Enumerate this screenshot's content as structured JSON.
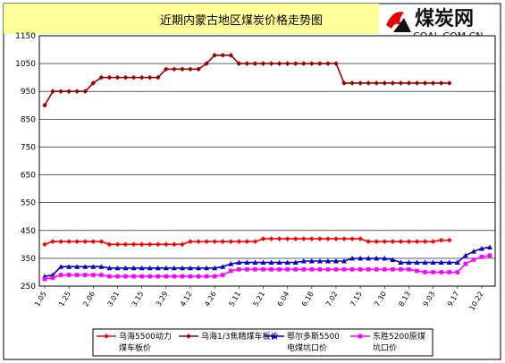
{
  "logo": {
    "cn": "煤炭网",
    "en": "COAL.COM.CN"
  },
  "chart_data": {
    "type": "line",
    "title": "近期内蒙古地区煤炭价格走势图",
    "xlabel": "",
    "ylabel": "",
    "ylim": [
      250,
      1150
    ],
    "yticks": [
      250,
      350,
      450,
      550,
      650,
      750,
      850,
      950,
      1050,
      1150
    ],
    "grid": true,
    "legend_position": "bottom",
    "x_tick_labels": [
      "1.05",
      "1.25",
      "2.06",
      "3.01",
      "3.15",
      "3.29",
      "4.12",
      "4.26",
      "5.11",
      "5.21",
      "6.04",
      "6.18",
      "7.02",
      "7.15",
      "7.30",
      "8.13",
      "9.03",
      "9.17",
      "10.22"
    ],
    "x_tick_indices": [
      0,
      3,
      6,
      9,
      12,
      15,
      18,
      21,
      24,
      27,
      30,
      33,
      36,
      39,
      42,
      45,
      48,
      51,
      54
    ],
    "series": [
      {
        "name": "乌海5500动力煤车板价",
        "color": "#ff0000",
        "marker": "diamond",
        "values": [
          400,
          410,
          410,
          410,
          410,
          410,
          410,
          410,
          400,
          400,
          400,
          400,
          400,
          400,
          400,
          400,
          400,
          400,
          410,
          410,
          410,
          410,
          410,
          410,
          410,
          410,
          410,
          420,
          420,
          420,
          420,
          420,
          420,
          420,
          420,
          420,
          420,
          420,
          420,
          420,
          410,
          410,
          410,
          410,
          410,
          410,
          410,
          410,
          410,
          415,
          415
        ]
      },
      {
        "name": "乌海1/3焦精煤车板价",
        "color": "#990000",
        "marker": "diamond",
        "values": [
          900,
          950,
          950,
          950,
          950,
          950,
          980,
          1000,
          1000,
          1000,
          1000,
          1000,
          1000,
          1000,
          1000,
          1030,
          1030,
          1030,
          1030,
          1030,
          1050,
          1080,
          1080,
          1080,
          1050,
          1050,
          1050,
          1050,
          1050,
          1050,
          1050,
          1050,
          1050,
          1050,
          1050,
          1050,
          1050,
          980,
          980,
          980,
          980,
          980,
          980,
          980,
          980,
          980,
          980,
          980,
          980,
          980,
          980
        ]
      },
      {
        "name": "鄂尔多斯5500电煤坑口价",
        "color": "#0000cc",
        "marker": "triangle",
        "values": [
          285,
          290,
          320,
          320,
          320,
          320,
          320,
          320,
          315,
          315,
          315,
          315,
          315,
          315,
          315,
          315,
          315,
          315,
          315,
          315,
          315,
          315,
          320,
          330,
          335,
          335,
          335,
          335,
          335,
          335,
          335,
          335,
          340,
          340,
          340,
          340,
          340,
          340,
          350,
          350,
          350,
          350,
          350,
          345,
          335,
          335,
          335,
          335,
          335,
          335,
          335,
          335,
          360,
          375,
          385,
          390
        ]
      },
      {
        "name": "东胜5200原煤坑口价",
        "color": "#ff00ff",
        "marker": "square",
        "values": [
          275,
          280,
          290,
          290,
          290,
          290,
          290,
          290,
          285,
          285,
          285,
          285,
          285,
          285,
          285,
          285,
          285,
          285,
          285,
          285,
          285,
          285,
          290,
          305,
          310,
          310,
          310,
          310,
          310,
          310,
          310,
          310,
          310,
          310,
          310,
          310,
          310,
          310,
          310,
          310,
          310,
          310,
          310,
          310,
          310,
          310,
          305,
          300,
          300,
          300,
          300,
          300,
          330,
          345,
          355,
          360
        ]
      }
    ]
  }
}
